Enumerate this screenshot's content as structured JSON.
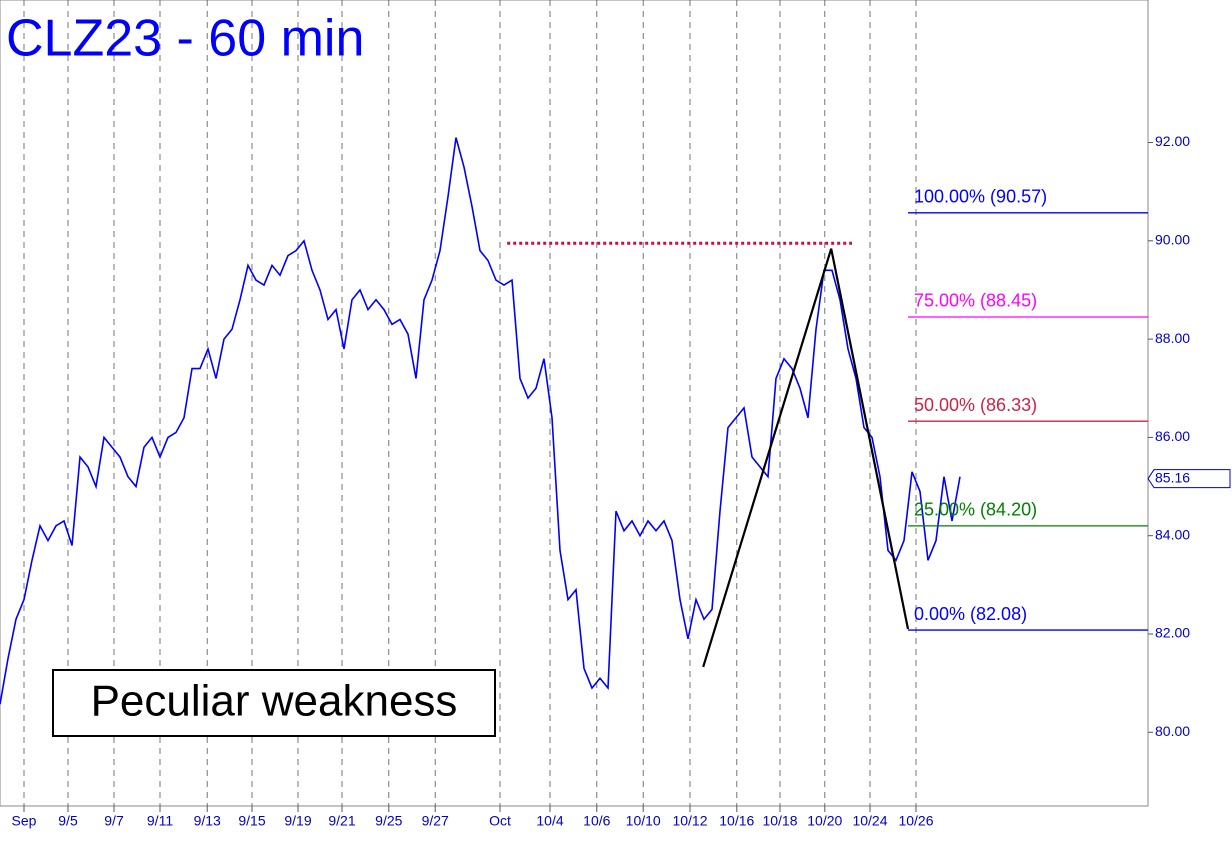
{
  "chart_data": {
    "type": "line",
    "title": "CLZ23 - 60 min",
    "annotation": "Peculiar weakness",
    "x": [
      0,
      1,
      2,
      3,
      4,
      5,
      6,
      7,
      8,
      9,
      10,
      11,
      12,
      13,
      14,
      15,
      16,
      17,
      18,
      19,
      20,
      21,
      22,
      23,
      24,
      25,
      26,
      27,
      28,
      29,
      30,
      31,
      32,
      33,
      34,
      35,
      36,
      37,
      38,
      39,
      40,
      41,
      42,
      43,
      44,
      45,
      46,
      47,
      48,
      49,
      50,
      51,
      52,
      53,
      54,
      55,
      56,
      57,
      58,
      59,
      60,
      61,
      62,
      63,
      64,
      65,
      66,
      67,
      68,
      69,
      70,
      71,
      72,
      73,
      74,
      75,
      76,
      77,
      78,
      79,
      80,
      81,
      82,
      83,
      84,
      85,
      86,
      87,
      88,
      89,
      90,
      91,
      92,
      93,
      94,
      95,
      96,
      97,
      98,
      99,
      100,
      101,
      102,
      103,
      104,
      105,
      106,
      107,
      108,
      109,
      110,
      111,
      112,
      113,
      114,
      115,
      116,
      117,
      118,
      119,
      120
    ],
    "series": [
      {
        "name": "CLZ23",
        "color": "#0000ff",
        "values": [
          80.57,
          81.5,
          82.3,
          82.7,
          83.5,
          84.2,
          83.9,
          84.2,
          84.3,
          83.8,
          85.6,
          85.4,
          85.0,
          86.0,
          85.8,
          85.6,
          85.2,
          85.0,
          85.8,
          86.0,
          85.6,
          86.0,
          86.1,
          86.4,
          87.4,
          87.4,
          87.8,
          87.2,
          88.0,
          88.2,
          88.8,
          89.5,
          89.2,
          89.1,
          89.5,
          89.3,
          89.7,
          89.8,
          90.0,
          89.4,
          89.0,
          88.4,
          88.6,
          87.8,
          88.8,
          89.0,
          88.6,
          88.8,
          88.6,
          88.3,
          88.4,
          88.1,
          87.2,
          88.8,
          89.2,
          89.8,
          90.9,
          92.1,
          91.5,
          90.7,
          89.8,
          89.6,
          89.2,
          89.1,
          89.2,
          87.2,
          86.8,
          87.0,
          87.6,
          86.4,
          83.7,
          82.7,
          82.9,
          81.3,
          80.9,
          81.1,
          80.9,
          84.5,
          84.1,
          84.3,
          84.0,
          84.3,
          84.1,
          84.3,
          83.9,
          82.7,
          81.9,
          82.7,
          82.3,
          82.5,
          84.5,
          86.2,
          86.4,
          86.6,
          85.6,
          85.4,
          85.2,
          87.2,
          87.6,
          87.4,
          87.0,
          86.4,
          88.2,
          89.4,
          89.4,
          88.8,
          87.8,
          87.2,
          86.2,
          86.0,
          85.2,
          83.7,
          83.5,
          83.9,
          85.3,
          84.9,
          83.5,
          83.9,
          85.2,
          84.3,
          85.2
        ]
      }
    ],
    "xlim": [
      0,
      143.5
    ],
    "xticks": [
      {
        "value": 3,
        "label": "Sep"
      },
      {
        "value": 8.5,
        "label": "9/5"
      },
      {
        "value": 14.25,
        "label": "9/7"
      },
      {
        "value": 20,
        "label": "9/11"
      },
      {
        "value": 25.9,
        "label": "9/13"
      },
      {
        "value": 31.5,
        "label": "9/15"
      },
      {
        "value": 37.25,
        "label": "9/19"
      },
      {
        "value": 42.75,
        "label": "9/21"
      },
      {
        "value": 48.6,
        "label": "9/25"
      },
      {
        "value": 54.4,
        "label": "9/27"
      },
      {
        "value": 62.5,
        "label": "Oct"
      },
      {
        "value": 68.75,
        "label": "10/4"
      },
      {
        "value": 74.6,
        "label": "10/6"
      },
      {
        "value": 80.4,
        "label": "10/10"
      },
      {
        "value": 86.25,
        "label": "10/12"
      },
      {
        "value": 92.1,
        "label": "10/16"
      },
      {
        "value": 97.5,
        "label": "10/18"
      },
      {
        "value": 103.1,
        "label": "10/20"
      },
      {
        "value": 108.75,
        "label": "10/24"
      },
      {
        "value": 114.5,
        "label": "10/26"
      }
    ],
    "ylim": [
      78.5,
      94.9
    ],
    "yticks": [
      {
        "value": 80,
        "label": "80.00"
      },
      {
        "value": 82,
        "label": "82.00"
      },
      {
        "value": 84,
        "label": "84.00"
      },
      {
        "value": 86,
        "label": "86.00"
      },
      {
        "value": 88,
        "label": "88.00"
      },
      {
        "value": 90,
        "label": "90.00"
      },
      {
        "value": 92,
        "label": "92.00"
      }
    ],
    "last_price": {
      "value": 85.16,
      "label": "85.16"
    },
    "fib_levels": [
      {
        "label": "100.00% (90.57)",
        "value": 90.57,
        "color": "#0000ff"
      },
      {
        "label": "75.00% (88.45)",
        "value": 88.45,
        "color": "#ff00ff"
      },
      {
        "label": "50.00% (86.33)",
        "value": 86.33,
        "color": "#cc2244"
      },
      {
        "label": "25.00% (84.20)",
        "value": 84.2,
        "color": "#008000"
      },
      {
        "label": "0.00% (82.08)",
        "value": 82.08,
        "color": "#0000ff"
      }
    ],
    "fib_start": 113.5,
    "resistance": {
      "value": 89.95,
      "x": [
        63.4,
        106.5
      ],
      "color": "#c8103c"
    },
    "trendline": {
      "x": [
        87.9,
        103.9,
        113.5
      ],
      "y": [
        81.33,
        89.84,
        82.1
      ],
      "color": "#000000"
    }
  }
}
